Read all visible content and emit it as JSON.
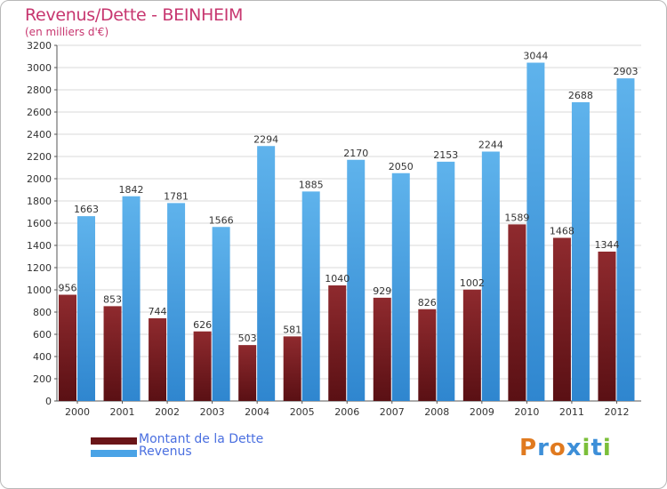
{
  "header": {
    "title": "Revenus/Dette - BEINHEIM",
    "subtitle": "(en milliers d'€)"
  },
  "colors": {
    "title": "#c7366f",
    "dette": "#7a1f23",
    "revenus": "#4aa3e6",
    "legend_text": "#4a6fe0",
    "grid": "#d8d8d8"
  },
  "chart_data": {
    "type": "bar",
    "categories": [
      "2000",
      "2001",
      "2002",
      "2003",
      "2004",
      "2005",
      "2006",
      "2007",
      "2008",
      "2009",
      "2010",
      "2011",
      "2012"
    ],
    "series": [
      {
        "name": "Montant de la Dette",
        "values": [
          956,
          853,
          744,
          626,
          503,
          581,
          1040,
          929,
          826,
          1002,
          1589,
          1468,
          1344
        ]
      },
      {
        "name": "Revenus",
        "values": [
          1663,
          1842,
          1781,
          1566,
          2294,
          1885,
          2170,
          2050,
          2153,
          2244,
          3044,
          2688,
          2903
        ]
      }
    ],
    "ylim": [
      0,
      3200
    ],
    "yticks": [
      0,
      200,
      400,
      600,
      800,
      1000,
      1200,
      1400,
      1600,
      1800,
      2000,
      2200,
      2400,
      2600,
      2800,
      3000,
      3200
    ],
    "grid": true,
    "legend_position": "bottom-left"
  },
  "legend": {
    "items": [
      {
        "label": "Montant de la Dette",
        "color": "#7a1f23"
      },
      {
        "label": "Revenus",
        "color": "#4aa3e6"
      }
    ]
  },
  "logo": {
    "letters": [
      "P",
      "r",
      "o",
      "x",
      "i",
      "t",
      "i"
    ],
    "colors": [
      "#e07a1f",
      "#3d8fd8",
      "#e07a1f",
      "#3d8fd8",
      "#7bbf3a",
      "#3d8fd8",
      "#7bbf3a"
    ]
  }
}
